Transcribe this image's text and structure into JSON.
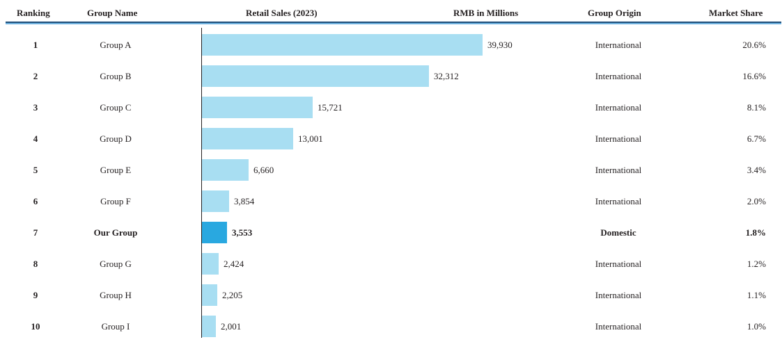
{
  "headers": {
    "ranking": "Ranking",
    "group_name": "Group Name",
    "retail_sales": "Retail Sales (2023)",
    "unit": "RMB in Millions",
    "group_origin": "Group Origin",
    "market_share": "Market Share"
  },
  "colors": {
    "bar": "#a8def2",
    "bar_highlight": "#29a8e0",
    "rule_dark": "#1f4e79",
    "rule_light": "#6fb3e0"
  },
  "chart_data": {
    "type": "bar",
    "orientation": "horizontal",
    "title": "Retail Sales (2023)",
    "unit": "RMB in Millions",
    "categories": [
      "Group A",
      "Group B",
      "Group C",
      "Group D",
      "Group E",
      "Group F",
      "Our Group",
      "Group G",
      "Group H",
      "Group I"
    ],
    "values": [
      39930,
      32312,
      15721,
      13001,
      6660,
      3854,
      3553,
      2424,
      2205,
      2001
    ],
    "value_labels": [
      "39,930",
      "32,312",
      "15,721",
      "13,001",
      "6,660",
      "3,854",
      "3,553",
      "2,424",
      "2,205",
      "2,001"
    ],
    "xlim": [
      0,
      39930
    ],
    "highlight": "Our Group",
    "table": {
      "ranking": [
        "1",
        "2",
        "3",
        "4",
        "5",
        "6",
        "7",
        "8",
        "9",
        "10"
      ],
      "group_origin": [
        "International",
        "International",
        "International",
        "International",
        "International",
        "International",
        "Domestic",
        "International",
        "International",
        "International"
      ],
      "market_share": [
        "20.6%",
        "16.6%",
        "8.1%",
        "6.7%",
        "3.4%",
        "2.0%",
        "1.8%",
        "1.2%",
        "1.1%",
        "1.0%"
      ]
    }
  }
}
